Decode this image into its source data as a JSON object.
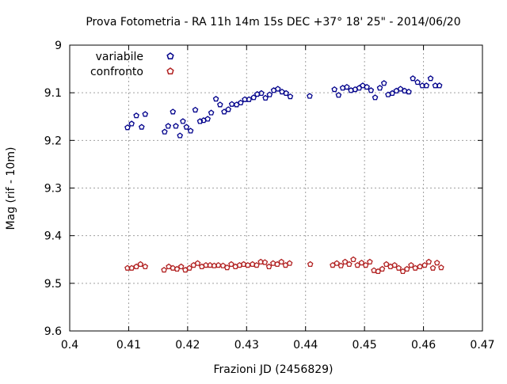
{
  "chart_data": {
    "type": "scatter",
    "title": "Prova Fotometria - RA 11h 14m 15s DEC +37° 18' 25\" - 2014/06/20",
    "xlabel": "Frazioni JD (2456829)",
    "ylabel": "Mag (rif - 10m)",
    "xlim": [
      0.4,
      0.47
    ],
    "ylim": [
      9.6,
      9
    ],
    "y_inverted": true,
    "x_ticks": [
      0.4,
      0.41,
      0.42,
      0.43,
      0.44,
      0.45,
      0.46,
      0.47
    ],
    "y_ticks": [
      9,
      9.1,
      9.2,
      9.3,
      9.4,
      9.5,
      9.6
    ],
    "x_tick_labels": [
      "0.4",
      "0.41",
      "0.42",
      "0.43",
      "0.44",
      "0.45",
      "0.46",
      "0.47"
    ],
    "y_tick_labels": [
      "9",
      "9.1",
      "9.2",
      "9.3",
      "9.4",
      "9.5",
      "9.6"
    ],
    "grid": true,
    "legend_position": "top-left",
    "series": [
      {
        "name": "variabile",
        "color": "#00008b",
        "marker": "pentagon",
        "x": [
          0.4098,
          0.4105,
          0.4113,
          0.4122,
          0.4128,
          0.4161,
          0.4167,
          0.4175,
          0.418,
          0.4187,
          0.4192,
          0.4198,
          0.4205,
          0.4213,
          0.4221,
          0.4227,
          0.4234,
          0.424,
          0.4248,
          0.4255,
          0.4262,
          0.4269,
          0.4275,
          0.4283,
          0.429,
          0.4297,
          0.4304,
          0.4312,
          0.4318,
          0.4325,
          0.4332,
          0.4339,
          0.4346,
          0.4353,
          0.436,
          0.4367,
          0.4374,
          0.4407,
          0.4449,
          0.4456,
          0.4463,
          0.447,
          0.4477,
          0.4484,
          0.4491,
          0.4497,
          0.4504,
          0.4511,
          0.4518,
          0.4526,
          0.4533,
          0.454,
          0.4547,
          0.4554,
          0.4561,
          0.4568,
          0.4575,
          0.4582,
          0.459,
          0.4598,
          0.4605,
          0.4612,
          0.462,
          0.4627
        ],
        "y": [
          9.173,
          9.165,
          9.148,
          9.172,
          9.145,
          9.182,
          9.17,
          9.14,
          9.17,
          9.19,
          9.16,
          9.172,
          9.18,
          9.136,
          9.16,
          9.158,
          9.155,
          9.142,
          9.113,
          9.125,
          9.14,
          9.135,
          9.124,
          9.125,
          9.121,
          9.114,
          9.114,
          9.11,
          9.103,
          9.101,
          9.111,
          9.104,
          9.095,
          9.092,
          9.098,
          9.101,
          9.108,
          9.107,
          9.093,
          9.105,
          9.09,
          9.088,
          9.095,
          9.093,
          9.09,
          9.085,
          9.088,
          9.095,
          9.11,
          9.09,
          9.08,
          9.104,
          9.101,
          9.096,
          9.092,
          9.096,
          9.098,
          9.07,
          9.078,
          9.085,
          9.085,
          9.07,
          9.085,
          9.085
        ]
      },
      {
        "name": "confronto",
        "color": "#b22222",
        "marker": "pentagon",
        "x": [
          0.4098,
          0.4105,
          0.4113,
          0.412,
          0.4128,
          0.416,
          0.4168,
          0.4175,
          0.4182,
          0.4189,
          0.4196,
          0.4203,
          0.421,
          0.4217,
          0.4224,
          0.4231,
          0.4238,
          0.4245,
          0.4252,
          0.426,
          0.4267,
          0.4274,
          0.4281,
          0.4288,
          0.4295,
          0.4302,
          0.431,
          0.4317,
          0.4324,
          0.4331,
          0.4338,
          0.4345,
          0.4352,
          0.4359,
          0.4366,
          0.4373,
          0.4408,
          0.4446,
          0.4453,
          0.446,
          0.4467,
          0.4474,
          0.4481,
          0.4488,
          0.4495,
          0.4502,
          0.4509,
          0.4516,
          0.4523,
          0.453,
          0.4537,
          0.4544,
          0.4551,
          0.4558,
          0.4565,
          0.4572,
          0.4579,
          0.4586,
          0.4594,
          0.4602,
          0.4609,
          0.4616,
          0.4623,
          0.463
        ],
        "y": [
          9.468,
          9.468,
          9.465,
          9.46,
          9.465,
          9.472,
          9.465,
          9.468,
          9.47,
          9.465,
          9.472,
          9.468,
          9.462,
          9.458,
          9.465,
          9.462,
          9.462,
          9.463,
          9.462,
          9.463,
          9.467,
          9.46,
          9.465,
          9.462,
          9.46,
          9.462,
          9.46,
          9.462,
          9.455,
          9.456,
          9.465,
          9.458,
          9.46,
          9.455,
          9.462,
          9.458,
          9.46,
          9.462,
          9.458,
          9.463,
          9.455,
          9.46,
          9.45,
          9.462,
          9.457,
          9.462,
          9.455,
          9.473,
          9.475,
          9.47,
          9.46,
          9.465,
          9.462,
          9.468,
          9.475,
          9.47,
          9.462,
          9.468,
          9.465,
          9.462,
          9.455,
          9.468,
          9.457,
          9.467
        ]
      }
    ]
  }
}
